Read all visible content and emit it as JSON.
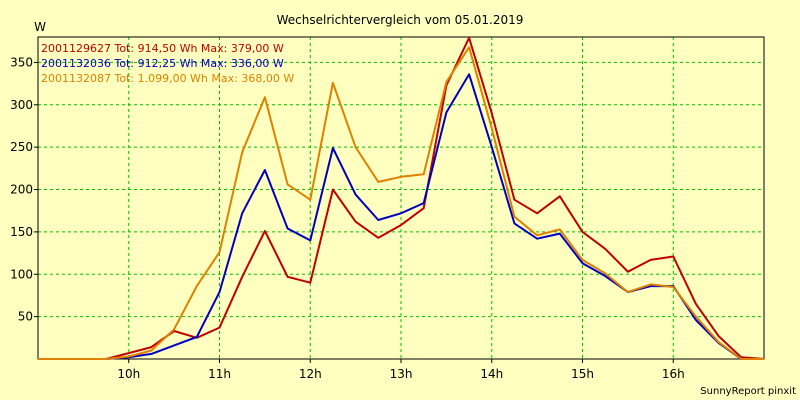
{
  "chart_data": {
    "type": "line",
    "title": "Wechselrichtervergleich vom 05.01.2019",
    "ylabel": "W",
    "xlabel": "",
    "x_start_hour": 9,
    "x_end_hour": 17,
    "x_step_hours": 0.25,
    "xticks": [
      "10h",
      "11h",
      "12h",
      "13h",
      "14h",
      "15h",
      "16h"
    ],
    "yticks": [
      50,
      100,
      150,
      200,
      250,
      300,
      350
    ],
    "ylim": [
      0,
      380
    ],
    "grid": true,
    "grid_color": "#00c000",
    "legend_position": "top-left",
    "credit": "SunnyReport pinxit",
    "series": [
      {
        "name": "2001129627",
        "label": "2001129627 Tot: 914,50 Wh Max: 379,00 W",
        "color": "#c00000",
        "values": [
          0,
          0,
          0,
          0,
          7,
          14,
          33,
          25,
          37,
          97,
          151,
          97,
          90,
          200,
          162,
          143,
          158,
          178,
          323,
          379,
          290,
          188,
          172,
          192,
          150,
          130,
          103,
          117,
          121,
          65,
          27,
          2,
          0
        ]
      },
      {
        "name": "2001132036",
        "label": "2001132036 Tot: 912,25 Wh Max: 336,00 W",
        "color": "#0000c0",
        "values": [
          0,
          0,
          0,
          0,
          2,
          6,
          16,
          26,
          79,
          172,
          223,
          154,
          140,
          249,
          194,
          164,
          172,
          184,
          291,
          336,
          250,
          160,
          142,
          148,
          113,
          98,
          79,
          86,
          86,
          46,
          19,
          0,
          0
        ]
      },
      {
        "name": "2001132087",
        "label": "2001132087 Tot: 1.099,00 Wh Max: 368,00 W",
        "color": "#e08000",
        "values": [
          0,
          0,
          0,
          0,
          3,
          10,
          35,
          86,
          126,
          244,
          309,
          206,
          188,
          326,
          250,
          209,
          215,
          218,
          327,
          368,
          272,
          168,
          146,
          153,
          117,
          101,
          79,
          88,
          85,
          50,
          20,
          0,
          0
        ]
      }
    ]
  }
}
